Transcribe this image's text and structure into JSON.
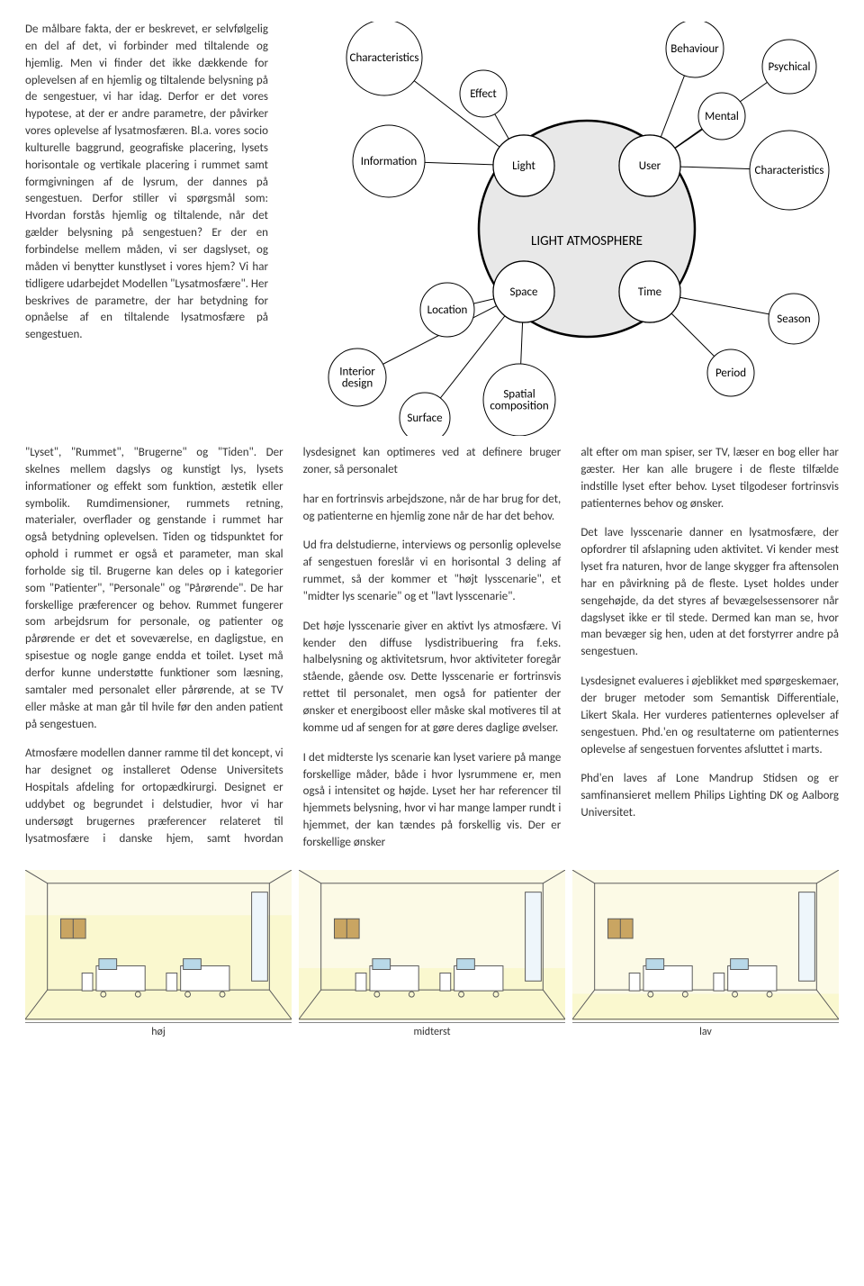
{
  "textCol": {
    "p1": "De målbare fakta, der er beskrevet, er selvfølgelig en del af det, vi forbinder med tiltalende og hjemlig. Men vi finder det ikke dækkende for oplevelsen af en hjemlig og tiltalende belysning på de sengestuer, vi har idag. Derfor er det vores hypotese, at der er andre parametre, der påvirker vores oplevelse af lysatmosfæren. Bl.a. vores socio kulturelle baggrund, geografiske placering, lysets horisontale og vertikale placering i rummet samt formgivningen af de lysrum, der dannes på sengestuen. Derfor stiller vi spørgsmål som: Hvordan forstås hjemlig og tiltalende, når det gælder belysning på sengestuen? Er der en forbindelse mellem måden, vi ser dagslyset, og måden vi benytter kunstlyset i vores hjem? Vi har tidligere udarbejdet Modellen \"Lysatmosfære\". Her beskrives de parametre, der har betydning for opnåelse af en tiltalende lysatmosfære på sengestuen.",
    "p2": "\"Lyset\", \"Rummet\", \"Brugerne\" og \"Tiden\". Der skelnes mellem dagslys og kunstigt lys, lysets informationer og effekt som funktion, æstetik eller symbolik. Rumdimensioner, rummets retning, materialer, overflader og genstande i rummet har også betydning oplevelsen. Tiden og tidspunktet for ophold i rummet er også et parameter, man skal forholde sig til. Brugerne kan deles op i kategorier som \"Patienter\", \"Personale\" og \"Pårørende\". De har forskellige præferencer og behov. Rummet fungerer som arbejdsrum for personale, og patienter og pårørende er det et soveværelse, en dagligstue, en spisestue og nogle gange endda et toilet. Lyset må derfor kunne understøtte funktioner som læsning, samtaler med personalet eller pårørende, at se TV eller måske at man går til hvile før den anden patient på sengestuen.",
    "p3": "Atmosfære modellen danner ramme til det koncept, vi har designet og installeret Odense Universitets Hospitals afdeling for ortopædkirurgi. Designet er uddybet og begrundet i delstudier, hvor vi har undersøgt brugernes præferencer relateret til lysatmosfære i danske hjem, samt hvordan lysdesignet kan optimeres ved at definere bruger zoner, så personalet",
    "p4": "har en fortrinsvis arbejdszone, når de har brug for det, og patienterne en hjemlig zone når de har det behov.",
    "p5": "Ud fra delstudierne, interviews og personlig oplevelse af sengestuen foreslår vi en horisontal 3 deling af rummet, så der kommer et \"højt lysscenarie\", et \"midter lys scenarie\" og et \"lavt lysscenarie\".",
    "p6": "Det høje lysscenarie giver en aktivt lys atmosfære. Vi kender den diffuse lysdistribuering fra f.eks. halbelysning og aktivitetsrum, hvor aktiviteter foregår stående, gående osv. Dette lysscenarie er fortrinsvis rettet til personalet, men også for patienter der ønsker et energiboost eller måske skal motiveres til at komme ud af sengen for at gøre deres daglige øvelser.",
    "p7": "I det midterste lys scenarie kan lyset variere på mange forskellige måder, både i hvor lysrummene er, men også i intensitet og højde. Lyset her har referencer til hjemmets belysning, hvor vi har mange lamper rundt i hjemmet, der kan tændes på forskellig vis. Der er forskellige ønsker",
    "p8": "alt efter om man spiser, ser TV, læser en bog eller har gæster. Her kan alle brugere i de fleste tilfælde indstille lyset efter behov. Lyset  tilgodeser fortrinsvis patienternes behov og ønsker.",
    "p9": "Det lave lysscenarie danner en lysatmosfære, der opfordrer til afslapning uden aktivitet. Vi kender mest lyset fra naturen, hvor de lange skygger fra aftensolen har en påvirkning på de fleste. Lyset holdes under sengehøjde, da det styres af bevægelsessensorer når dagslyset ikke er til stede. Dermed kan man se, hvor man bevæger sig hen, uden at det forstyrrer andre på sengestuen.",
    "p10": "Lysdesignet evalueres i øjeblikket med spørgeskemaer, der bruger metoder som Semantisk Differentiale, Likert Skala. Her vurderes patienternes oplevelser af sengestuen. Phd.'en og resultaterne om patienternes oplevelse af sengestuen forventes afsluttet i marts.",
    "p11": "Phd'en laves af Lone Mandrup Stidsen og er samfinansieret mellem Philips Lighting DK og Aalborg Universitet."
  },
  "diagram": {
    "center": "LIGHT ATMOSPHERE",
    "mainNodes": [
      "Light",
      "User",
      "Space",
      "Time"
    ],
    "outer": {
      "characteristics": "Characteristics",
      "effect": "Effect",
      "information": "Information",
      "behaviour": "Behaviour",
      "psychical": "Psychical",
      "mental": "Mental",
      "characteristics2": "Characteristics",
      "location": "Location",
      "interiorDesign": "Interior\ndesign",
      "surface": "Surface",
      "spatialComposition": "Spatial\ncomposition",
      "season": "Season",
      "period": "Period"
    },
    "colors": {
      "centerFill": "#e8e8e8",
      "nodeFill": "#ffffff",
      "stroke": "#000000"
    }
  },
  "panels": {
    "captions": [
      "høj",
      "midterst",
      "lav"
    ],
    "colors": {
      "sky": "#f5f1b8",
      "floor": "#ffffff",
      "line": "#5a5a5a",
      "cabinet": "#c9a562",
      "bed": "#b8d8e8",
      "highlight": "#faf7cc"
    },
    "highlightHeights": [
      0.7,
      0.35,
      0.18
    ]
  }
}
